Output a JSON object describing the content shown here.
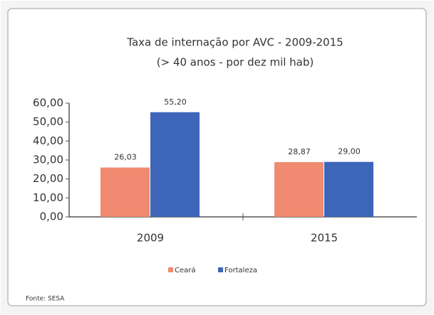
{
  "chart_data": {
    "type": "bar",
    "title": "Taxa de internação por AVC - 2009-2015",
    "subtitle": "(> 40 anos - por dez mil hab)",
    "categories": [
      "2009",
      "2015"
    ],
    "series": [
      {
        "name": "Ceará",
        "color": "#f08a70",
        "values": [
          26.03,
          28.87
        ],
        "value_labels": [
          "26,03",
          "28,87"
        ]
      },
      {
        "name": "Fortaleza",
        "color": "#3d66b8",
        "values": [
          55.2,
          29.0
        ],
        "value_labels": [
          "55,20",
          "29,00"
        ]
      }
    ],
    "ylim": [
      0,
      60
    ],
    "yticks": [
      {
        "value": 0,
        "label": "0,00"
      },
      {
        "value": 10,
        "label": "10,00"
      },
      {
        "value": 20,
        "label": "20,00"
      },
      {
        "value": 30,
        "label": "30,00"
      },
      {
        "value": 40,
        "label": "40,00"
      },
      {
        "value": 50,
        "label": "50,00"
      },
      {
        "value": 60,
        "label": "60,00"
      }
    ],
    "legend": "bottom",
    "source": "Fonte: SESA"
  }
}
